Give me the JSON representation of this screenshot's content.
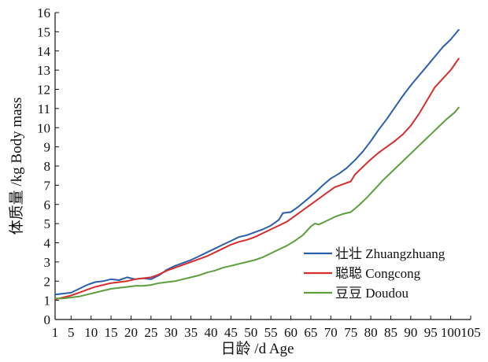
{
  "chart_data": {
    "type": "line",
    "title": "",
    "xlabel": "日龄 /d Age",
    "ylabel": "体质量 /kg Body mass",
    "xlim": [
      1,
      105
    ],
    "ylim": [
      0,
      16
    ],
    "x_ticks": [
      1,
      5,
      10,
      15,
      20,
      25,
      30,
      35,
      40,
      45,
      50,
      55,
      60,
      65,
      70,
      75,
      80,
      85,
      90,
      95,
      100,
      105
    ],
    "y_ticks": [
      0,
      1,
      2,
      3,
      4,
      5,
      6,
      7,
      8,
      9,
      10,
      11,
      12,
      13,
      14,
      15,
      16
    ],
    "grid": false,
    "legend_position": "bottom-right",
    "series": [
      {
        "name": "壮壮 Zhuangzhuang",
        "color": "#2b5fab",
        "points": [
          [
            1,
            1.3
          ],
          [
            3,
            1.35
          ],
          [
            5,
            1.4
          ],
          [
            7,
            1.6
          ],
          [
            9,
            1.8
          ],
          [
            11,
            1.95
          ],
          [
            13,
            2.0
          ],
          [
            15,
            2.1
          ],
          [
            17,
            2.05
          ],
          [
            19,
            2.2
          ],
          [
            21,
            2.1
          ],
          [
            23,
            2.15
          ],
          [
            25,
            2.1
          ],
          [
            27,
            2.3
          ],
          [
            29,
            2.6
          ],
          [
            31,
            2.8
          ],
          [
            33,
            2.95
          ],
          [
            35,
            3.1
          ],
          [
            37,
            3.3
          ],
          [
            39,
            3.5
          ],
          [
            41,
            3.7
          ],
          [
            43,
            3.9
          ],
          [
            45,
            4.1
          ],
          [
            47,
            4.3
          ],
          [
            49,
            4.4
          ],
          [
            51,
            4.55
          ],
          [
            53,
            4.7
          ],
          [
            55,
            4.9
          ],
          [
            57,
            5.2
          ],
          [
            58,
            5.55
          ],
          [
            60,
            5.6
          ],
          [
            62,
            5.9
          ],
          [
            64,
            6.25
          ],
          [
            66,
            6.6
          ],
          [
            68,
            7.0
          ],
          [
            70,
            7.35
          ],
          [
            72,
            7.6
          ],
          [
            74,
            7.9
          ],
          [
            76,
            8.3
          ],
          [
            78,
            8.75
          ],
          [
            80,
            9.3
          ],
          [
            82,
            9.9
          ],
          [
            84,
            10.45
          ],
          [
            86,
            11.05
          ],
          [
            88,
            11.65
          ],
          [
            90,
            12.2
          ],
          [
            92,
            12.7
          ],
          [
            94,
            13.2
          ],
          [
            96,
            13.7
          ],
          [
            98,
            14.2
          ],
          [
            100,
            14.6
          ],
          [
            102,
            15.1
          ]
        ]
      },
      {
        "name": "聪聪 Congcong",
        "color": "#d62e2e",
        "points": [
          [
            1,
            1.05
          ],
          [
            3,
            1.15
          ],
          [
            5,
            1.25
          ],
          [
            7,
            1.4
          ],
          [
            9,
            1.55
          ],
          [
            11,
            1.7
          ],
          [
            13,
            1.8
          ],
          [
            15,
            1.9
          ],
          [
            17,
            1.95
          ],
          [
            19,
            2.0
          ],
          [
            21,
            2.1
          ],
          [
            23,
            2.15
          ],
          [
            25,
            2.2
          ],
          [
            27,
            2.35
          ],
          [
            29,
            2.55
          ],
          [
            31,
            2.7
          ],
          [
            33,
            2.85
          ],
          [
            35,
            3.0
          ],
          [
            37,
            3.15
          ],
          [
            39,
            3.3
          ],
          [
            41,
            3.5
          ],
          [
            43,
            3.7
          ],
          [
            45,
            3.9
          ],
          [
            47,
            4.05
          ],
          [
            49,
            4.15
          ],
          [
            51,
            4.3
          ],
          [
            53,
            4.5
          ],
          [
            55,
            4.7
          ],
          [
            57,
            4.9
          ],
          [
            59,
            5.1
          ],
          [
            61,
            5.4
          ],
          [
            63,
            5.7
          ],
          [
            65,
            6.0
          ],
          [
            67,
            6.3
          ],
          [
            69,
            6.6
          ],
          [
            71,
            6.9
          ],
          [
            73,
            7.05
          ],
          [
            75,
            7.2
          ],
          [
            76,
            7.55
          ],
          [
            78,
            7.95
          ],
          [
            80,
            8.35
          ],
          [
            82,
            8.7
          ],
          [
            84,
            9.0
          ],
          [
            86,
            9.3
          ],
          [
            88,
            9.65
          ],
          [
            90,
            10.1
          ],
          [
            92,
            10.7
          ],
          [
            94,
            11.4
          ],
          [
            96,
            12.1
          ],
          [
            98,
            12.55
          ],
          [
            100,
            13.0
          ],
          [
            102,
            13.6
          ]
        ]
      },
      {
        "name": "豆豆 Doudou",
        "color": "#5e9e3c",
        "points": [
          [
            1,
            1.1
          ],
          [
            3,
            1.1
          ],
          [
            5,
            1.15
          ],
          [
            7,
            1.2
          ],
          [
            9,
            1.3
          ],
          [
            11,
            1.4
          ],
          [
            13,
            1.5
          ],
          [
            15,
            1.6
          ],
          [
            17,
            1.65
          ],
          [
            19,
            1.7
          ],
          [
            21,
            1.75
          ],
          [
            23,
            1.75
          ],
          [
            25,
            1.8
          ],
          [
            27,
            1.9
          ],
          [
            29,
            1.95
          ],
          [
            31,
            2.0
          ],
          [
            33,
            2.1
          ],
          [
            35,
            2.2
          ],
          [
            37,
            2.3
          ],
          [
            39,
            2.45
          ],
          [
            41,
            2.55
          ],
          [
            43,
            2.7
          ],
          [
            45,
            2.8
          ],
          [
            47,
            2.9
          ],
          [
            49,
            3.0
          ],
          [
            51,
            3.1
          ],
          [
            53,
            3.25
          ],
          [
            55,
            3.45
          ],
          [
            57,
            3.65
          ],
          [
            59,
            3.85
          ],
          [
            61,
            4.1
          ],
          [
            63,
            4.4
          ],
          [
            65,
            4.85
          ],
          [
            66,
            5.0
          ],
          [
            67,
            4.95
          ],
          [
            69,
            5.15
          ],
          [
            71,
            5.35
          ],
          [
            73,
            5.5
          ],
          [
            75,
            5.6
          ],
          [
            77,
            5.95
          ],
          [
            79,
            6.35
          ],
          [
            81,
            6.8
          ],
          [
            83,
            7.25
          ],
          [
            85,
            7.65
          ],
          [
            87,
            8.05
          ],
          [
            89,
            8.45
          ],
          [
            91,
            8.85
          ],
          [
            93,
            9.25
          ],
          [
            95,
            9.65
          ],
          [
            97,
            10.05
          ],
          [
            99,
            10.45
          ],
          [
            101,
            10.8
          ],
          [
            102,
            11.05
          ]
        ]
      }
    ]
  }
}
